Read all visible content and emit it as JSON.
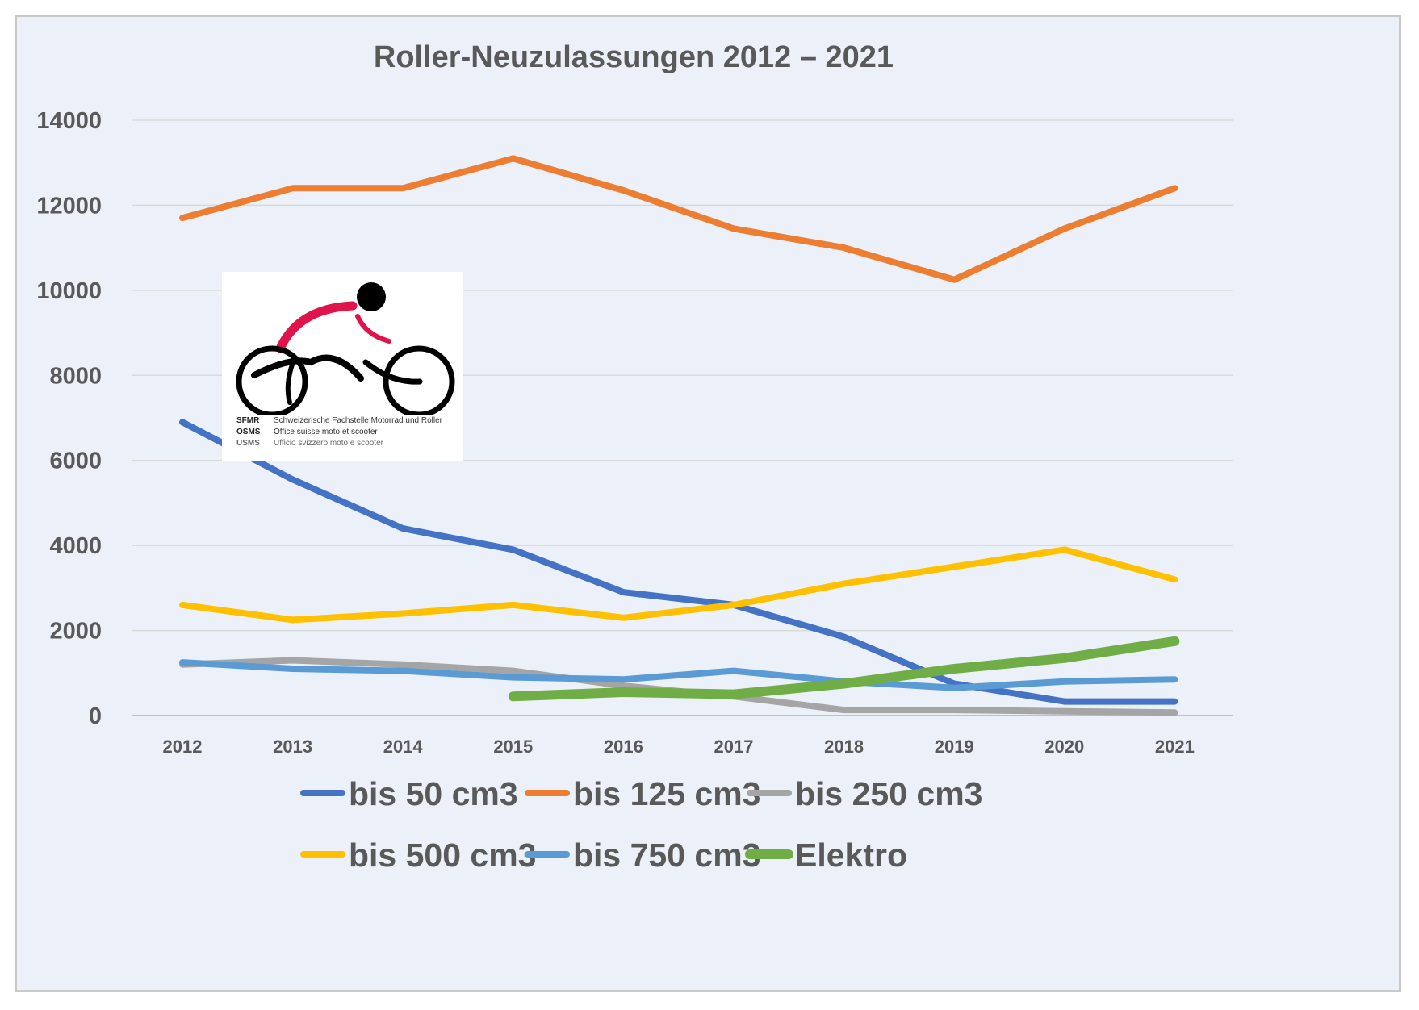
{
  "chart_data": {
    "type": "line",
    "title": "Roller-Neuzulassungen 2012 – 2021",
    "xlabel": "",
    "ylabel": "",
    "categories": [
      "2012",
      "2013",
      "2014",
      "2015",
      "2016",
      "2017",
      "2018",
      "2019",
      "2020",
      "2021"
    ],
    "ylim": [
      0,
      14000
    ],
    "yticks": [
      0,
      2000,
      4000,
      6000,
      8000,
      10000,
      12000,
      14000
    ],
    "ytick_labels": [
      "0",
      "2000",
      "4000",
      "6000",
      "8000",
      "10000",
      "12000",
      "14000"
    ],
    "grid": "horizontal",
    "legend_position": "bottom",
    "series": [
      {
        "name": "bis 50 cm3",
        "color": "#4472c4",
        "values": [
          6900,
          5550,
          4400,
          3900,
          2900,
          2600,
          1850,
          750,
          330,
          330
        ]
      },
      {
        "name": "bis 125 cm3",
        "color": "#ed7d31",
        "values": [
          11700,
          12400,
          12400,
          13100,
          12350,
          11450,
          11000,
          10250,
          11450,
          12400
        ]
      },
      {
        "name": "bis 250 cm3",
        "color": "#a5a5a5",
        "values": [
          1200,
          1300,
          1200,
          1050,
          700,
          450,
          130,
          130,
          100,
          70
        ]
      },
      {
        "name": "bis 500 cm3",
        "color": "#ffc000",
        "values": [
          2600,
          2250,
          2400,
          2600,
          2300,
          2600,
          3100,
          3500,
          3900,
          3200
        ]
      },
      {
        "name": "bis 750 cm3",
        "color": "#5b9bd5",
        "values": [
          1250,
          1100,
          1050,
          900,
          850,
          1050,
          800,
          650,
          800,
          850
        ]
      },
      {
        "name": "Elektro",
        "color": "#70ad47",
        "values": [
          null,
          null,
          null,
          450,
          550,
          500,
          750,
          1100,
          1350,
          1750
        ]
      }
    ]
  },
  "logo": {
    "rows": [
      {
        "abbr": "SFMR",
        "full": "Schweizerische Fachstelle Motorrad und Roller"
      },
      {
        "abbr": "OSMS",
        "full": "Office suisse moto et scooter"
      },
      {
        "abbr": "USMS",
        "full": "Ufficio svizzero moto e scooter"
      }
    ]
  }
}
